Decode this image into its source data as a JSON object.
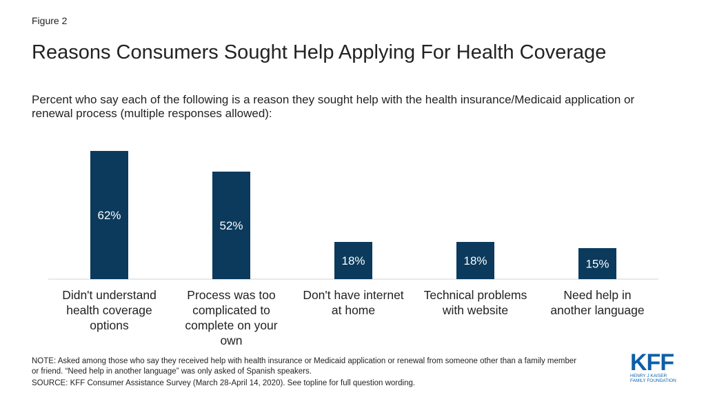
{
  "figure_label": "Figure 2",
  "chart_data": {
    "type": "bar",
    "title": "Reasons Consumers Sought Help Applying For Health Coverage",
    "subtitle": "Percent who say each of the following is a reason they sought help with the health insurance/Medicaid application or renewal process (multiple responses allowed):",
    "categories": [
      [
        "Didn't understand",
        "health coverage",
        "options"
      ],
      [
        "Process was too",
        "complicated to",
        "complete on your",
        "own"
      ],
      [
        "Don't have internet",
        "at home"
      ],
      [
        "Technical problems",
        "with website"
      ],
      [
        "Need help in",
        "another language"
      ]
    ],
    "values": [
      62,
      52,
      18,
      18,
      15
    ],
    "value_labels": [
      "62%",
      "52%",
      "18%",
      "18%",
      "15%"
    ],
    "ylim": [
      0,
      64
    ],
    "bar_color": "#0b3a5c",
    "label_color": "#ffffff",
    "grid": false
  },
  "note": "NOTE: Asked among those who say they received help with health insurance or Medicaid application or renewal from someone other than a family member or friend. “Need help in another language” was only asked of Spanish speakers.",
  "source": "SOURCE: KFF Consumer Assistance Survey (March 28-April 14, 2020). See topline for full question wording.",
  "logo": {
    "mark": "KFF",
    "line1": "HENRY J KAISER",
    "line2": "FAMILY FOUNDATION",
    "color": "#0d5fa8"
  }
}
